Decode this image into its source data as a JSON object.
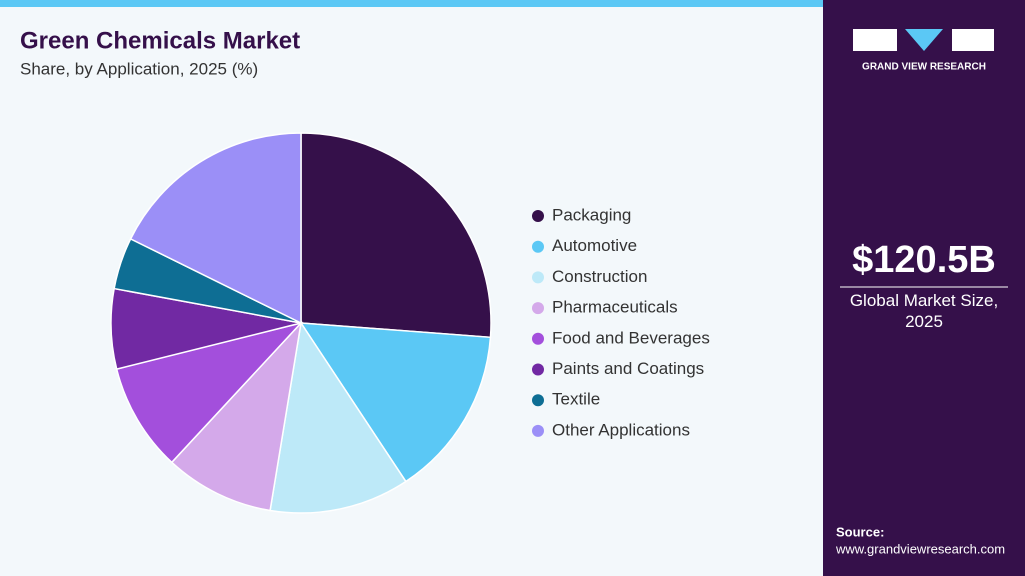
{
  "chart_data": {
    "type": "pie",
    "title": "Green Chemicals Market",
    "subtitle": "Share, by Application, 2025 (%)",
    "categories": [
      "Packaging",
      "Automotive",
      "Construction",
      "Pharmaceuticals",
      "Food and Beverages",
      "Paints and Coatings",
      "Textile",
      "Other Applications"
    ],
    "values": [
      26.2,
      14.5,
      11.9,
      9.3,
      9.2,
      6.8,
      4.4,
      17.7
    ],
    "colors": [
      "#35104a",
      "#5bc8f5",
      "#bde9f8",
      "#d4a9ea",
      "#a34fdc",
      "#7129a3",
      "#0e6e94",
      "#9b8ff7"
    ],
    "legend": "right"
  },
  "brand": "GRAND VIEW RESEARCH",
  "market_size": "$120.5B",
  "market_size_label": "Global Market Size, 2025",
  "source_label": "Source:",
  "source_url": "www.grandviewresearch.com"
}
